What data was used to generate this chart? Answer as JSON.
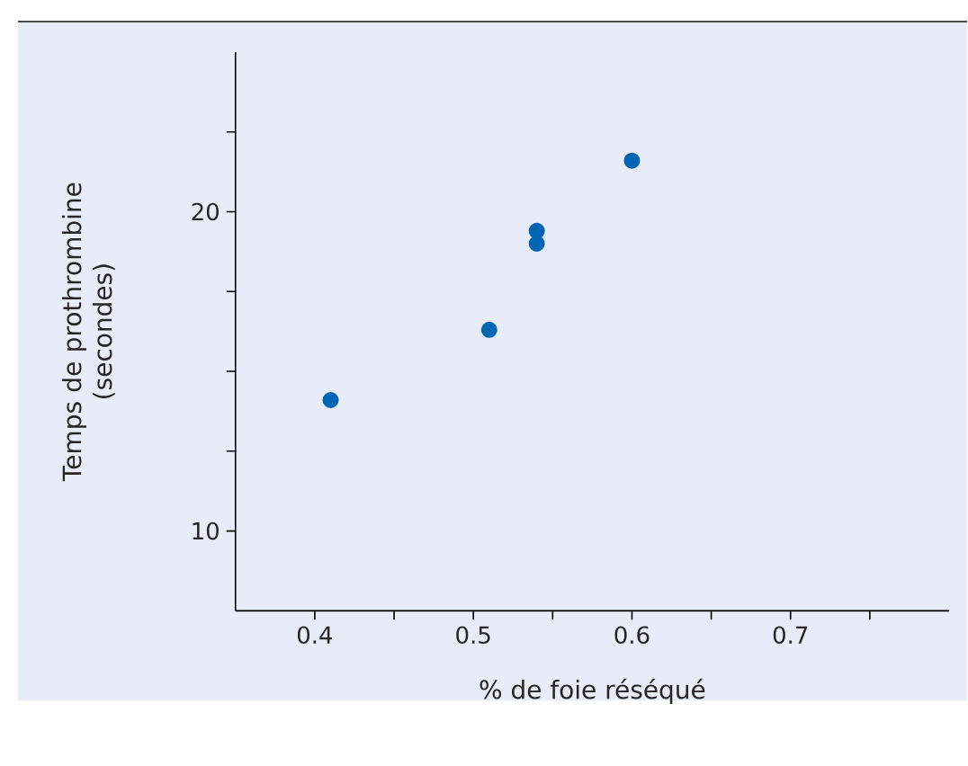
{
  "chart_data": {
    "type": "scatter",
    "xlabel": "% de foie réséqué",
    "ylabel": "Temps de prothrombine (secondes)",
    "xlim": [
      0.35,
      0.8
    ],
    "ylim": [
      7.5,
      25
    ],
    "xticks": [
      {
        "value": 0.4,
        "label": "0.4"
      },
      {
        "value": 0.45,
        "label": null
      },
      {
        "value": 0.5,
        "label": "0.5"
      },
      {
        "value": 0.55,
        "label": null
      },
      {
        "value": 0.6,
        "label": "0.6"
      },
      {
        "value": 0.65,
        "label": null
      },
      {
        "value": 0.7,
        "label": "0.7"
      },
      {
        "value": 0.75,
        "label": null
      }
    ],
    "yticks": [
      {
        "value": 10,
        "label": "10"
      },
      {
        "value": 12.5,
        "label": null
      },
      {
        "value": 15,
        "label": null
      },
      {
        "value": 17.5,
        "label": null
      },
      {
        "value": 20,
        "label": "20"
      },
      {
        "value": 22.5,
        "label": null
      }
    ],
    "x": [
      0.41,
      0.51,
      0.54,
      0.54,
      0.6
    ],
    "values": [
      14.1,
      16.3,
      19.4,
      19.0,
      21.6
    ],
    "color": "#0066b3",
    "marker": "circle",
    "grid": false
  }
}
